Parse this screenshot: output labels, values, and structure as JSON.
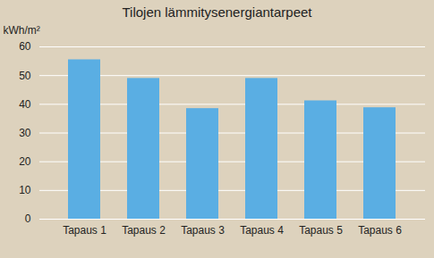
{
  "chart_data": {
    "type": "bar",
    "title": "Tilojen lämmitysenergiantarpeet",
    "ylabel": "kWh/m²",
    "categories": [
      "Tapaus 1",
      "Tapaus 2",
      "Tapaus 3",
      "Tapaus 4",
      "Tapaus 5",
      "Tapaus 6"
    ],
    "values": [
      55.5,
      49,
      38.5,
      49,
      41.2,
      38.8
    ],
    "color": "#5aaee3",
    "ylim": [
      0,
      60
    ],
    "yticks": [
      0,
      10,
      20,
      30,
      40,
      50,
      60
    ],
    "grid": true
  }
}
